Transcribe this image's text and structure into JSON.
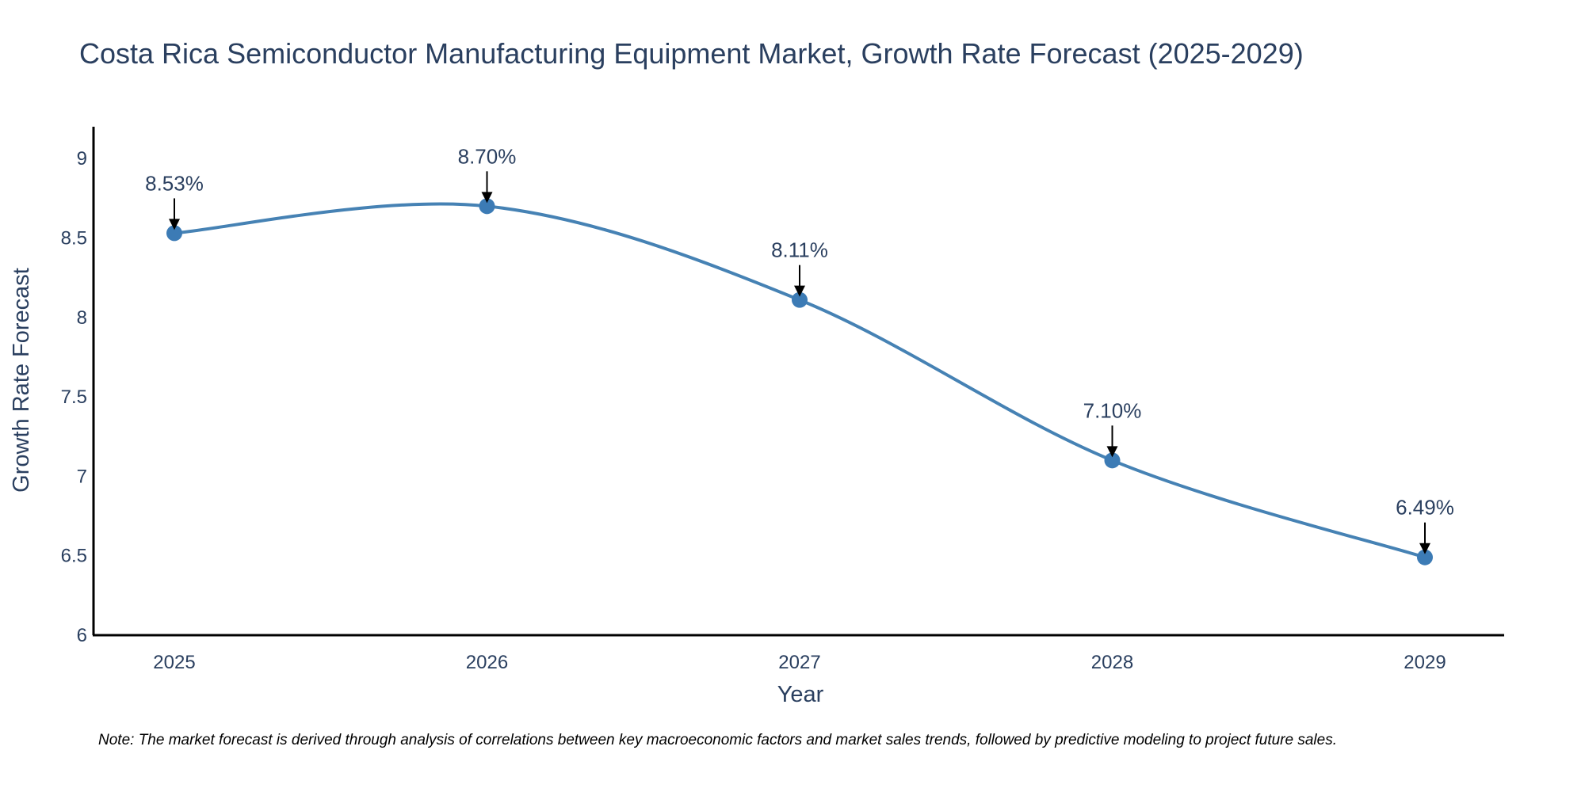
{
  "chart_data": {
    "type": "line",
    "title": "Costa Rica Semiconductor Manufacturing Equipment Market, Growth Rate Forecast (2025-2029)",
    "xlabel": "Year",
    "ylabel": "Growth Rate Forecast",
    "categories": [
      "2025",
      "2026",
      "2027",
      "2028",
      "2029"
    ],
    "values": [
      8.53,
      8.7,
      8.11,
      7.1,
      6.49
    ],
    "data_labels": [
      "8.53%",
      "8.70%",
      "8.11%",
      "7.10%",
      "6.49%"
    ],
    "y_ticks": [
      6,
      6.5,
      7,
      7.5,
      8,
      8.5,
      9
    ],
    "y_tick_labels": [
      "6",
      "6.5",
      "7",
      "7.5",
      "8",
      "8.5",
      "9"
    ],
    "ylim": [
      6,
      9.2
    ],
    "grid": false,
    "legend": "none",
    "note": "Note: The market forecast is derived through analysis of correlations between key macroeconomic factors and market sales trends, followed by predictive modeling to project future sales."
  },
  "colors": {
    "line": "#4682b4",
    "marker": "#3c7bb5",
    "axis": "#000000",
    "text": "#2a3f5f",
    "arrow": "#000000"
  }
}
